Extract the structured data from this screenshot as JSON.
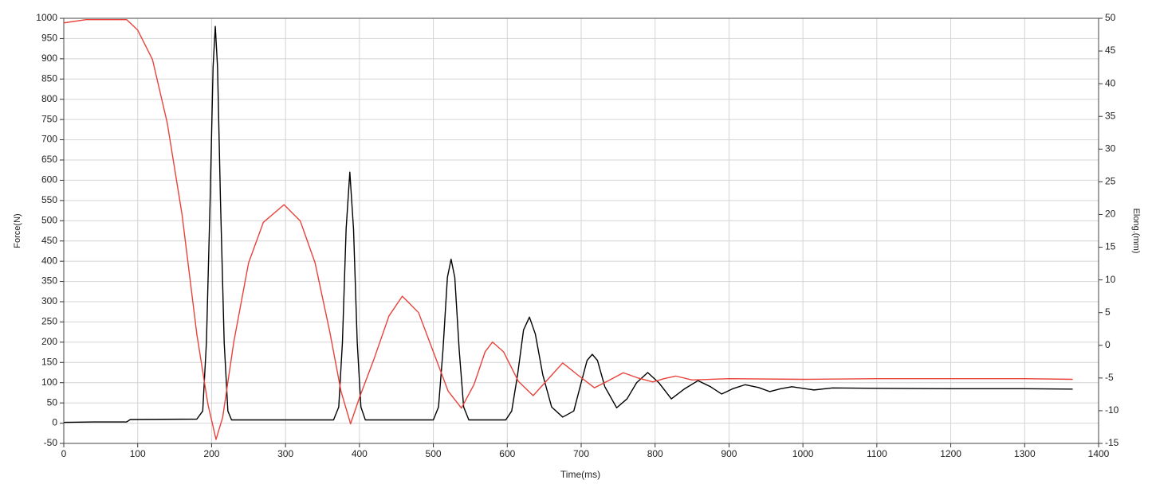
{
  "chart_data": {
    "type": "line",
    "xlabel": "Time(ms)",
    "ylabel": "Force(N)",
    "y2label": "Elong.(mm)",
    "xlim": [
      0,
      1400
    ],
    "xticks": [
      0,
      100,
      200,
      300,
      400,
      500,
      600,
      700,
      800,
      900,
      1000,
      1100,
      1200,
      1300,
      1400
    ],
    "ylim": [
      -50,
      1000
    ],
    "yticks": [
      -50,
      0,
      50,
      100,
      150,
      200,
      250,
      300,
      350,
      400,
      450,
      500,
      550,
      600,
      650,
      700,
      750,
      800,
      850,
      900,
      950,
      1000
    ],
    "y2lim": [
      -15,
      50
    ],
    "y2ticks": [
      -15,
      -10,
      -5,
      0,
      5,
      10,
      15,
      20,
      25,
      30,
      35,
      40,
      45,
      50
    ],
    "grid": true,
    "series": [
      {
        "color": "#000000",
        "x": [
          0,
          40,
          85,
          90,
          180,
          188,
          193,
          198,
          202,
          205,
          208,
          212,
          217,
          222,
          227,
          365,
          372,
          377,
          382,
          387,
          392,
          397,
          402,
          408,
          500,
          507,
          513,
          519,
          524,
          529,
          535,
          541,
          548,
          598,
          606,
          614,
          622,
          630,
          638,
          648,
          660,
          675,
          690,
          700,
          708,
          715,
          722,
          732,
          748,
          762,
          775,
          790,
          805,
          822,
          840,
          858,
          875,
          890,
          905,
          922,
          940,
          955,
          970,
          985,
          1000,
          1015,
          1040,
          1100,
          1200,
          1300,
          1365
        ],
        "values": [
          2,
          3,
          3,
          9,
          10,
          30,
          200,
          550,
          880,
          980,
          880,
          550,
          200,
          30,
          8,
          8,
          40,
          200,
          480,
          620,
          480,
          200,
          40,
          8,
          8,
          40,
          180,
          360,
          405,
          360,
          180,
          40,
          8,
          8,
          30,
          120,
          230,
          262,
          220,
          120,
          40,
          15,
          30,
          100,
          155,
          170,
          155,
          90,
          38,
          60,
          100,
          125,
          100,
          60,
          85,
          105,
          90,
          72,
          85,
          95,
          88,
          78,
          85,
          90,
          86,
          82,
          87,
          86,
          85,
          85,
          84
        ]
      },
      {
        "color": "#e8423a",
        "axis": "y2",
        "x": [
          0,
          30,
          85,
          100,
          120,
          140,
          160,
          180,
          195,
          206,
          215,
          230,
          250,
          270,
          298,
          320,
          340,
          360,
          375,
          388,
          400,
          420,
          440,
          458,
          480,
          500,
          520,
          538,
          555,
          570,
          580,
          595,
          615,
          635,
          655,
          675,
          695,
          718,
          737,
          757,
          777,
          797,
          812,
          828,
          850,
          900,
          1000,
          1100,
          1200,
          1300,
          1365
        ],
        "values": [
          49.3,
          49.8,
          49.8,
          48.2,
          43.7,
          34,
          20,
          1.7,
          -9,
          -14.4,
          -11,
          0.5,
          12.6,
          18.8,
          21.5,
          19,
          12.6,
          2,
          -7,
          -12,
          -8,
          -2,
          4.5,
          7.5,
          5,
          -1,
          -7,
          -9.6,
          -6,
          -1,
          0.5,
          -1,
          -5.5,
          -7.7,
          -5.2,
          -2.7,
          -4.5,
          -6.5,
          -5.4,
          -4.2,
          -5,
          -5.6,
          -5.1,
          -4.7,
          -5.3,
          -5.1,
          -5.2,
          -5.1,
          -5.1,
          -5.1,
          -5.2
        ]
      }
    ]
  }
}
